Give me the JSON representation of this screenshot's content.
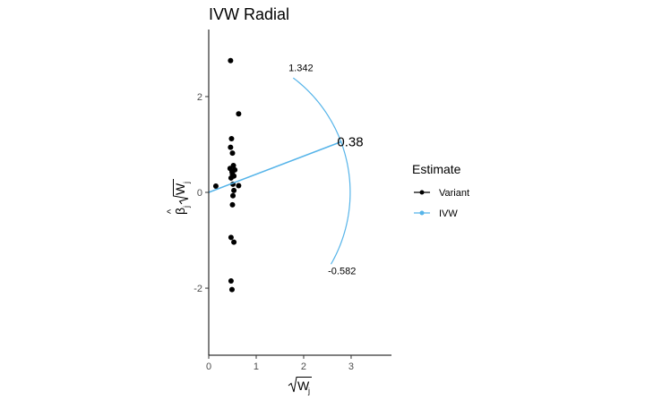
{
  "chart_data": {
    "type": "scatter",
    "title": "IVW Radial",
    "xlabel_base": "W",
    "xlabel_sub": "j",
    "ylabel_beta": "β",
    "ylabel_beta_sub": "j",
    "ylabel_w": "W",
    "ylabel_w_sub": "j",
    "xlim": [
      0,
      3.85
    ],
    "ylim": [
      -3.4,
      3.4
    ],
    "x_ticks": [
      0,
      1,
      2,
      3
    ],
    "x_tick_labels": [
      "0",
      "1",
      "2",
      "3"
    ],
    "y_ticks": [
      -2,
      0,
      2
    ],
    "y_tick_labels": [
      "-2",
      "0",
      "2"
    ],
    "grid": false,
    "legend": {
      "title": "Estimate",
      "position": "right",
      "entries": [
        {
          "label": "Variant",
          "color": "#000000"
        },
        {
          "label": "IVW",
          "color": "#56B4E9"
        }
      ]
    },
    "variants": {
      "name": "Variant",
      "color": "#000000",
      "points": [
        {
          "x": 0.46,
          "y": 2.75
        },
        {
          "x": 0.63,
          "y": 1.64
        },
        {
          "x": 0.48,
          "y": 1.12
        },
        {
          "x": 0.46,
          "y": 0.94
        },
        {
          "x": 0.5,
          "y": 0.82
        },
        {
          "x": 0.52,
          "y": 0.56
        },
        {
          "x": 0.45,
          "y": 0.5
        },
        {
          "x": 0.55,
          "y": 0.47
        },
        {
          "x": 0.49,
          "y": 0.43
        },
        {
          "x": 0.5,
          "y": 0.38
        },
        {
          "x": 0.53,
          "y": 0.34
        },
        {
          "x": 0.47,
          "y": 0.3
        },
        {
          "x": 0.15,
          "y": 0.13
        },
        {
          "x": 0.63,
          "y": 0.14
        },
        {
          "x": 0.51,
          "y": 0.17
        },
        {
          "x": 0.53,
          "y": 0.04
        },
        {
          "x": 0.51,
          "y": -0.07
        },
        {
          "x": 0.5,
          "y": -0.26
        },
        {
          "x": 0.47,
          "y": -0.94
        },
        {
          "x": 0.53,
          "y": -1.04
        },
        {
          "x": 0.47,
          "y": -1.85
        },
        {
          "x": 0.49,
          "y": -2.03
        }
      ]
    },
    "ivw": {
      "name": "IVW",
      "color": "#56B4E9",
      "estimate": 0.38,
      "estimate_label": "0.38",
      "line_end": {
        "x": 2.8,
        "y": 1.06
      },
      "arc": {
        "radius": 2.98,
        "upper_slope": 1.342,
        "lower_slope": -0.582,
        "upper_label": "1.342",
        "lower_label": "-0.582"
      }
    }
  }
}
